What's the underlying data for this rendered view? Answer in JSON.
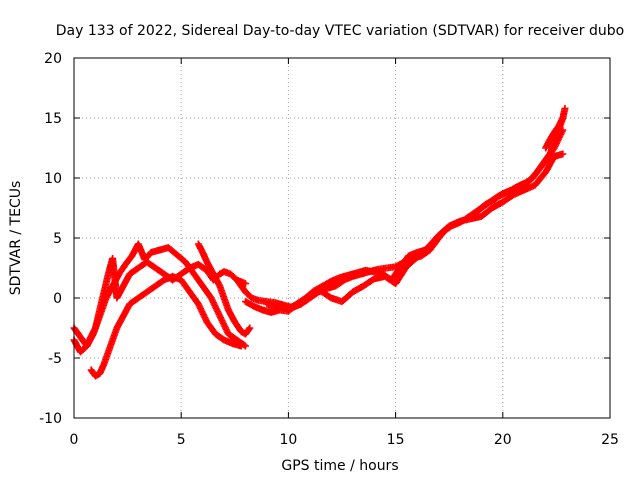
{
  "chart_data": {
    "type": "scatter",
    "title": "Day 133 of 2022, Sidereal Day-to-day VTEC variation (SDTVAR) for receiver dubo",
    "xlabel": "GPS time / hours",
    "ylabel": "SDTVAR / TECUs",
    "xlim": [
      0,
      25
    ],
    "ylim": [
      -10,
      20
    ],
    "xticks": [
      0,
      5,
      10,
      15,
      20,
      25
    ],
    "yticks": [
      -10,
      -5,
      0,
      5,
      10,
      15,
      20
    ],
    "grid": true,
    "marker": "+",
    "color": "#ff0000",
    "series": [
      {
        "x": [
          0.0,
          0.2,
          0.4,
          0.6,
          0.8,
          1.0,
          1.2,
          1.4,
          1.6,
          1.8,
          2.0,
          2.3,
          2.6,
          3.0,
          3.4,
          3.8,
          4.2,
          4.6,
          5.0,
          5.4,
          5.8,
          6.2,
          6.5,
          6.8,
          7.0,
          7.3,
          7.6,
          8.0
        ],
        "y": [
          -2.5,
          -3.0,
          -3.5,
          -4.0,
          -3.2,
          -2.5,
          -1.0,
          0.5,
          2.0,
          3.3,
          0.0,
          1.0,
          2.0,
          2.5,
          3.0,
          2.5,
          2.0,
          1.5,
          2.0,
          2.5,
          2.8,
          2.3,
          1.5,
          2.0,
          2.2,
          2.0,
          1.5,
          1.2
        ]
      },
      {
        "x": [
          0.0,
          0.3,
          0.6,
          0.9,
          1.2,
          1.5,
          1.8,
          2.1,
          2.4,
          2.7,
          3.0,
          3.3,
          3.6,
          4.0,
          4.4,
          4.8,
          5.2,
          5.6,
          6.0,
          6.4,
          6.8,
          7.2,
          7.6,
          8.0
        ],
        "y": [
          -3.5,
          -4.5,
          -4.0,
          -3.0,
          -1.5,
          0.0,
          1.0,
          2.0,
          2.8,
          3.5,
          4.5,
          3.2,
          3.8,
          4.0,
          4.2,
          3.6,
          3.0,
          2.0,
          1.0,
          0.0,
          -1.5,
          -3.0,
          -3.5,
          -4.0
        ]
      },
      {
        "x": [
          0.8,
          1.0,
          1.2,
          1.4,
          1.6,
          1.8,
          2.0,
          2.3,
          2.6,
          3.0,
          3.4,
          3.8,
          4.2,
          4.6,
          5.0,
          5.4,
          5.8,
          6.2,
          6.6,
          7.0,
          7.4,
          7.8
        ],
        "y": [
          -6.0,
          -6.5,
          -6.3,
          -5.5,
          -4.5,
          -3.5,
          -2.5,
          -1.5,
          -0.5,
          0.0,
          0.5,
          1.0,
          1.5,
          1.8,
          1.5,
          0.5,
          -0.5,
          -2.0,
          -3.0,
          -3.5,
          -3.8,
          -4.0
        ]
      },
      {
        "x": [
          5.8,
          6.0,
          6.2,
          6.5,
          6.8,
          7.0,
          7.2,
          7.5,
          7.8,
          8.0,
          8.2
        ],
        "y": [
          4.5,
          3.8,
          3.0,
          2.0,
          1.0,
          0.0,
          -1.0,
          -2.0,
          -2.8,
          -3.0,
          -2.5
        ]
      },
      {
        "x": [
          7.6,
          7.8,
          8.0,
          8.3,
          8.6,
          9.0,
          9.4,
          9.8,
          10.2,
          10.6,
          11.0,
          11.4,
          11.8,
          12.2,
          12.6,
          13.0,
          13.4,
          13.8,
          14.2,
          14.6,
          15.0,
          15.4,
          15.8,
          16.2,
          16.6,
          17.0,
          17.4,
          17.8,
          18.2,
          18.6,
          19.0,
          19.4,
          19.8,
          20.2,
          20.6,
          21.0,
          21.4,
          21.8,
          22.2,
          22.5,
          22.8
        ],
        "y": [
          1.5,
          1.0,
          0.5,
          0.0,
          -0.2,
          -0.3,
          -0.4,
          -0.6,
          -0.8,
          -0.5,
          0.0,
          0.5,
          0.8,
          1.0,
          1.5,
          1.8,
          2.0,
          2.2,
          2.4,
          2.5,
          2.6,
          3.0,
          3.3,
          3.5,
          4.0,
          5.0,
          5.8,
          6.2,
          6.5,
          7.0,
          7.5,
          8.0,
          8.5,
          8.8,
          9.2,
          9.5,
          10.0,
          11.0,
          12.0,
          13.5,
          15.0
        ]
      },
      {
        "x": [
          8.0,
          8.4,
          8.8,
          9.2,
          9.6,
          10.0,
          10.4,
          10.8,
          11.2,
          11.6,
          12.0,
          12.4,
          12.8,
          13.2,
          13.6,
          14.0,
          14.4,
          14.8,
          15.2,
          15.6,
          16.0,
          16.4,
          16.8,
          17.2,
          17.6,
          18.0,
          18.4,
          18.8,
          19.2,
          19.6,
          20.0,
          20.4,
          20.8,
          21.2,
          21.6,
          22.0,
          22.4,
          22.8
        ],
        "y": [
          -0.3,
          -0.7,
          -1.0,
          -1.2,
          -1.0,
          -1.1,
          -0.5,
          0.0,
          0.6,
          1.0,
          1.4,
          1.7,
          1.9,
          2.1,
          2.3,
          2.2,
          2.0,
          1.5,
          2.5,
          3.5,
          3.8,
          4.0,
          4.5,
          5.5,
          6.0,
          6.3,
          6.7,
          7.2,
          7.8,
          8.2,
          8.7,
          9.0,
          9.4,
          9.7,
          10.5,
          11.5,
          12.5,
          14.0
        ]
      },
      {
        "x": [
          9.0,
          9.5,
          10.0,
          10.5,
          11.0,
          11.5,
          12.0,
          12.5,
          13.0,
          13.5,
          14.0,
          14.5,
          15.0,
          15.5,
          16.0,
          16.5,
          17.0,
          17.5,
          18.0,
          18.5,
          19.0,
          19.5,
          20.0,
          20.5,
          21.0,
          21.5,
          22.0,
          22.4,
          22.8
        ],
        "y": [
          -0.5,
          -0.8,
          -0.9,
          -0.4,
          0.2,
          0.6,
          0.0,
          -0.3,
          0.5,
          1.0,
          1.6,
          1.8,
          1.2,
          2.6,
          3.4,
          4.2,
          5.2,
          6.0,
          6.4,
          6.6,
          6.8,
          7.5,
          8.0,
          8.6,
          9.0,
          9.4,
          10.5,
          11.8,
          12.0
        ]
      },
      {
        "x": [
          22.0,
          22.2,
          22.4,
          22.6,
          22.8,
          22.9
        ],
        "y": [
          12.5,
          13.2,
          13.8,
          14.3,
          15.0,
          15.8
        ]
      }
    ]
  }
}
